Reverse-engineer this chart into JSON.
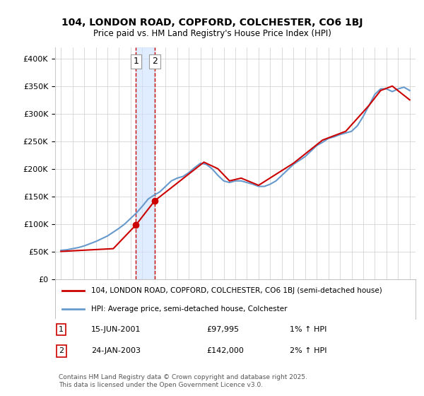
{
  "title": "104, LONDON ROAD, COPFORD, COLCHESTER, CO6 1BJ",
  "subtitle": "Price paid vs. HM Land Registry's House Price Index (HPI)",
  "legend_line1": "104, LONDON ROAD, COPFORD, COLCHESTER, CO6 1BJ (semi-detached house)",
  "legend_line2": "HPI: Average price, semi-detached house, Colchester",
  "footer": "Contains HM Land Registry data © Crown copyright and database right 2025.\nThis data is licensed under the Open Government Licence v3.0.",
  "transaction1_label": "1",
  "transaction1_date": "15-JUN-2001",
  "transaction1_price": "£97,995",
  "transaction1_hpi": "1% ↑ HPI",
  "transaction2_label": "2",
  "transaction2_date": "24-JAN-2003",
  "transaction2_price": "£142,000",
  "transaction2_hpi": "2% ↑ HPI",
  "ylim": [
    0,
    420000
  ],
  "yticks": [
    0,
    50000,
    100000,
    150000,
    200000,
    250000,
    300000,
    350000,
    400000
  ],
  "xlim_start": 1994.5,
  "xlim_end": 2025.5,
  "transaction1_x": 2001.45,
  "transaction2_x": 2003.07,
  "sold_color": "#cc0000",
  "hpi_color": "#6699cc",
  "marker_color": "#cc0000",
  "vline_color": "#cc0000",
  "shade_color": "#cce0ff",
  "background_color": "#ffffff",
  "grid_color": "#cccccc",
  "hpi_years": [
    1995,
    1995.5,
    1996,
    1996.5,
    1997,
    1997.5,
    1998,
    1998.5,
    1999,
    1999.5,
    2000,
    2000.5,
    2001,
    2001.5,
    2002,
    2002.5,
    2003,
    2003.5,
    2004,
    2004.5,
    2005,
    2005.5,
    2006,
    2006.5,
    2007,
    2007.5,
    2008,
    2008.5,
    2009,
    2009.5,
    2010,
    2010.5,
    2011,
    2011.5,
    2012,
    2012.5,
    2013,
    2013.5,
    2014,
    2014.5,
    2015,
    2015.5,
    2016,
    2016.5,
    2017,
    2017.5,
    2018,
    2018.5,
    2019,
    2019.5,
    2020,
    2020.5,
    2021,
    2021.5,
    2022,
    2022.5,
    2023,
    2023.5,
    2024,
    2024.5,
    2025
  ],
  "hpi_values": [
    52000,
    53000,
    55000,
    57000,
    60000,
    64000,
    68000,
    73000,
    78000,
    85000,
    92000,
    100000,
    110000,
    120000,
    132000,
    145000,
    152000,
    158000,
    168000,
    178000,
    183000,
    186000,
    193000,
    202000,
    210000,
    208000,
    200000,
    188000,
    178000,
    175000,
    178000,
    178000,
    175000,
    172000,
    168000,
    168000,
    172000,
    178000,
    188000,
    198000,
    208000,
    215000,
    222000,
    232000,
    242000,
    248000,
    255000,
    258000,
    262000,
    265000,
    268000,
    278000,
    295000,
    315000,
    335000,
    345000,
    345000,
    340000,
    345000,
    348000,
    342000
  ],
  "sold_years": [
    1995,
    1999.5,
    2001.45,
    2003.07,
    2007.3,
    2008.5,
    2009.5,
    2010.5,
    2012,
    2015,
    2017.5,
    2019.5,
    2021.5,
    2022.5,
    2023.5,
    2025
  ],
  "sold_values": [
    50000,
    55000,
    98000,
    142000,
    212000,
    200000,
    178000,
    183000,
    170000,
    210000,
    252000,
    268000,
    315000,
    342000,
    350000,
    325000
  ],
  "xticks": [
    1995,
    1996,
    1997,
    1998,
    1999,
    2000,
    2001,
    2002,
    2003,
    2004,
    2005,
    2006,
    2007,
    2008,
    2009,
    2010,
    2011,
    2012,
    2013,
    2014,
    2015,
    2016,
    2017,
    2018,
    2019,
    2020,
    2021,
    2022,
    2023,
    2024,
    2025
  ]
}
